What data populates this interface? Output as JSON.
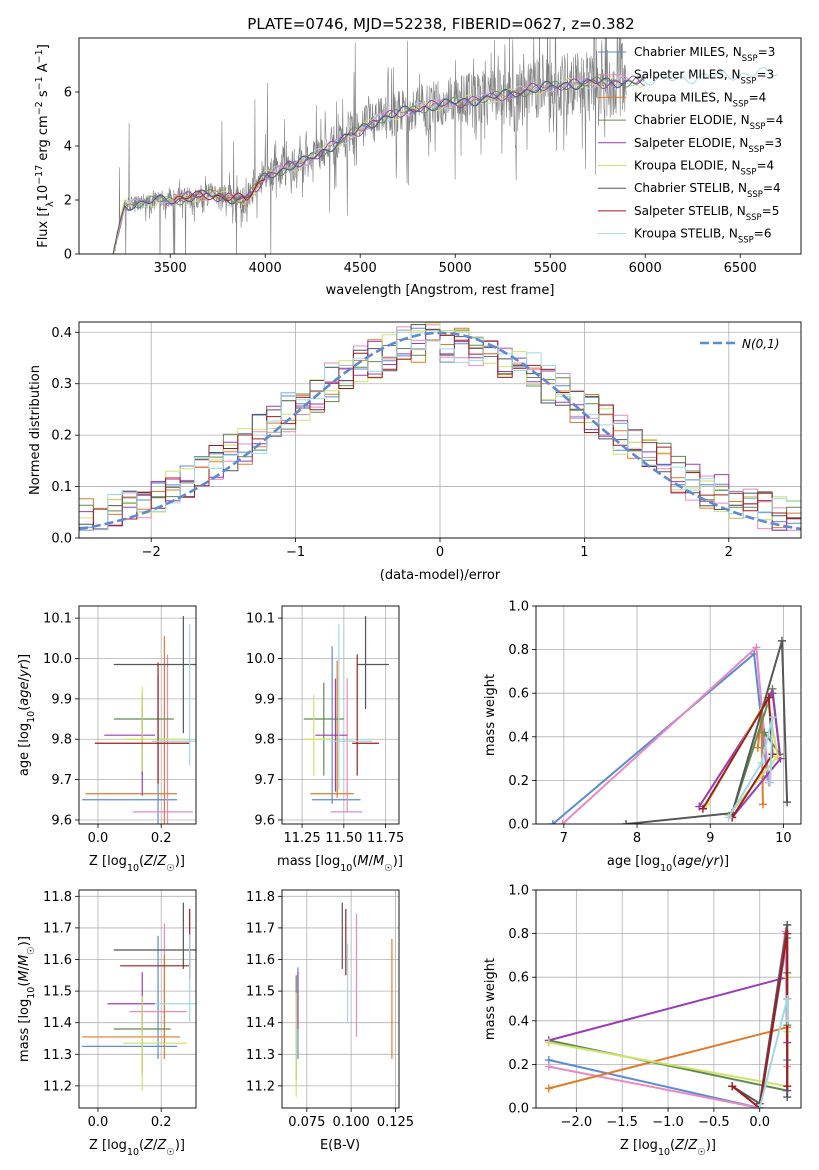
{
  "figure": {
    "title": "PLATE=0746, MJD=52238, FIBERID=0627, z=0.382"
  },
  "colors": [
    "#5b8ad6",
    "#e889c0",
    "#e07b2a",
    "#5f8a4f",
    "#9b3bb5",
    "#cfe26a",
    "#555555",
    "#a11c1c",
    "#9fd9e6"
  ],
  "spectrum_gray": "#7f7f7f",
  "legend_sub": "SSP",
  "chart_data": [
    {
      "id": "spectrum",
      "type": "line",
      "xlabel": "wavelength [Angstrom, rest frame]",
      "ylabel": "Flux [f_λ 10^-17 erg cm^-2 s^-1 A^-1]",
      "xlim": [
        3020,
        6820
      ],
      "ylim": [
        0,
        8.0
      ],
      "xticks": [
        3500,
        4000,
        4500,
        5000,
        5500,
        6000,
        6500
      ],
      "yticks": [
        0,
        2,
        4,
        6
      ],
      "grid": false,
      "legend": "top-right",
      "continuum": {
        "x": [
          3200,
          3260,
          3400,
          3520,
          3600,
          3700,
          3900,
          4000,
          4200,
          4400,
          4600,
          4800,
          5000,
          5200,
          5400,
          5600,
          5800,
          6000,
          6200,
          6400,
          6600,
          6750
        ],
        "y": [
          0.0,
          1.8,
          1.95,
          2.0,
          2.1,
          2.2,
          2.0,
          2.9,
          3.4,
          4.2,
          5.0,
          5.4,
          5.6,
          5.8,
          6.1,
          6.3,
          6.35,
          6.4,
          6.5,
          6.6,
          6.7,
          6.7
        ]
      },
      "series": [
        {
          "name": "Chabrier MILES",
          "nssp": "3"
        },
        {
          "name": "Salpeter MILES",
          "nssp": "3"
        },
        {
          "name": "Kroupa MILES",
          "nssp": "4"
        },
        {
          "name": "Chabrier ELODIE",
          "nssp": "4"
        },
        {
          "name": "Salpeter ELODIE",
          "nssp": "3"
        },
        {
          "name": "Kroupa ELODIE",
          "nssp": "4"
        },
        {
          "name": "Chabrier STELIB",
          "nssp": "4"
        },
        {
          "name": "Salpeter STELIB",
          "nssp": "5"
        },
        {
          "name": "Kroupa STELIB",
          "nssp": "6"
        }
      ]
    },
    {
      "id": "residuals",
      "type": "histogram",
      "xlabel": "(data-model)/error",
      "ylabel": "Normed distribution",
      "xlim": [
        -2.5,
        2.5
      ],
      "ylim": [
        0,
        0.42
      ],
      "xticks": [
        -2,
        -1,
        0,
        1,
        2
      ],
      "yticks": [
        0.0,
        0.1,
        0.2,
        0.3,
        0.4
      ],
      "grid": true,
      "legend": "top-right",
      "reference_label": "N(0,1)",
      "bins": 50
    },
    {
      "id": "age-vs-Z",
      "type": "errorbar",
      "xlabel": "Z [log10(Z/Z☉)]",
      "ylabel": "age [log10(age/yr)]",
      "xlim": [
        -0.06,
        0.31
      ],
      "ylim": [
        9.59,
        10.13
      ],
      "xticks": [
        0.0,
        0.2
      ],
      "yticks": [
        9.6,
        9.7,
        9.8,
        9.9,
        10.0,
        10.1
      ],
      "grid": true,
      "points": [
        {
          "x": 0.19,
          "xerr": [
            0.24,
            0.06
          ],
          "y": 9.65,
          "yerr": [
            0.37,
            0.31
          ]
        },
        {
          "x": 0.22,
          "xerr": [
            0.11,
            0.08
          ],
          "y": 9.62,
          "yerr": [
            0.13,
            0.39
          ]
        },
        {
          "x": 0.21,
          "xerr": [
            0.25,
            0.04
          ],
          "y": 9.665,
          "yerr": [
            0.12,
            0.39
          ]
        },
        {
          "x": 0.14,
          "xerr": [
            0.09,
            0.1
          ],
          "y": 9.85,
          "yerr": [
            0.14,
            0.06
          ]
        },
        {
          "x": 0.14,
          "xerr": [
            0.12,
            0.04
          ],
          "y": 9.81,
          "yerr": [
            0.15,
            0.07
          ]
        },
        {
          "x": 0.14,
          "xerr": [
            0.06,
            0.14
          ],
          "y": 9.8,
          "yerr": [
            0.08,
            0.13
          ]
        },
        {
          "x": 0.27,
          "xerr": [
            0.22,
            0.04
          ],
          "y": 9.985,
          "yerr": [
            0.17,
            0.12
          ]
        },
        {
          "x": 0.19,
          "xerr": [
            0.2,
            0.1
          ],
          "y": 9.79,
          "yerr": [
            0.1,
            0.2
          ]
        },
        {
          "x": 0.29,
          "xerr": [
            0.12,
            0.02
          ],
          "y": 9.795,
          "yerr": [
            0.06,
            0.29
          ]
        }
      ]
    },
    {
      "id": "age-vs-mass",
      "type": "errorbar",
      "xlabel": "mass [log10(M/M☉)]",
      "ylabel": "",
      "xlim": [
        11.13,
        11.83
      ],
      "ylim": [
        9.59,
        10.13
      ],
      "xticks": [
        11.25,
        11.5,
        11.75
      ],
      "yticks": [
        9.6,
        9.7,
        9.8,
        9.9,
        10.0,
        10.1
      ],
      "grid": true,
      "points": [
        {
          "x": 11.43,
          "xerr": [
            0.12,
            0.17
          ],
          "y": 9.65,
          "yerr": [
            0.01,
            0.38
          ]
        },
        {
          "x": 11.52,
          "xerr": [
            0.1,
            0.09
          ],
          "y": 9.62,
          "yerr": [
            0.0,
            0.33
          ]
        },
        {
          "x": 11.46,
          "xerr": [
            0.16,
            0.1
          ],
          "y": 9.665,
          "yerr": [
            0.01,
            0.33
          ]
        },
        {
          "x": 11.38,
          "xerr": [
            0.12,
            0.12
          ],
          "y": 9.85,
          "yerr": [
            0.14,
            0.09
          ]
        },
        {
          "x": 11.45,
          "xerr": [
            0.12,
            0.07
          ],
          "y": 9.81,
          "yerr": [
            0.14,
            0.14
          ]
        },
        {
          "x": 11.32,
          "xerr": [
            0.06,
            0.11
          ],
          "y": 9.8,
          "yerr": [
            0.09,
            0.11
          ]
        },
        {
          "x": 11.63,
          "xerr": [
            0.05,
            0.14
          ],
          "y": 9.985,
          "yerr": [
            0.11,
            0.12
          ]
        },
        {
          "x": 11.58,
          "xerr": [
            0.03,
            0.13
          ],
          "y": 9.79,
          "yerr": [
            0.08,
            0.22
          ]
        },
        {
          "x": 11.47,
          "xerr": [
            0.05,
            0.2
          ],
          "y": 9.795,
          "yerr": [
            0.12,
            0.29
          ]
        }
      ]
    },
    {
      "id": "weight-vs-age",
      "type": "line",
      "xlabel": "age [log10(age/yr)]",
      "ylabel": "mass weight",
      "xlim": [
        6.62,
        10.24
      ],
      "ylim": [
        0,
        1.0
      ],
      "xticks": [
        7,
        8,
        9,
        10
      ],
      "yticks": [
        0.0,
        0.2,
        0.4,
        0.6,
        0.8,
        1.0
      ],
      "grid": true,
      "series": [
        {
          "x": [
            6.85,
            9.6,
            9.78
          ],
          "y": [
            0.0,
            0.78,
            0.22
          ]
        },
        {
          "x": [
            6.98,
            9.63,
            9.8
          ],
          "y": [
            0.0,
            0.81,
            0.19
          ]
        },
        {
          "x": [
            9.65,
            9.7,
            9.72
          ],
          "y": [
            0.35,
            0.5,
            0.09
          ]
        },
        {
          "x": [
            9.3,
            9.85,
            9.95,
            9.74
          ],
          "y": [
            0.05,
            0.62,
            0.32,
            0.42
          ]
        },
        {
          "x": [
            8.85,
            9.85,
            9.96,
            9.3
          ],
          "y": [
            0.08,
            0.6,
            0.3,
            0.03
          ]
        },
        {
          "x": [
            8.95,
            9.78,
            9.92,
            9.25
          ],
          "y": [
            0.09,
            0.58,
            0.31,
            0.04
          ]
        },
        {
          "x": [
            7.85,
            9.3,
            9.98,
            10.05
          ],
          "y": [
            0.0,
            0.05,
            0.84,
            0.1
          ]
        },
        {
          "x": [
            8.9,
            9.8,
            9.85,
            9.3
          ],
          "y": [
            0.07,
            0.58,
            0.32,
            0.03
          ]
        },
        {
          "x": [
            9.25,
            9.7,
            9.85,
            9.82
          ],
          "y": [
            0.03,
            0.28,
            0.49,
            0.19
          ]
        }
      ]
    },
    {
      "id": "mass-vs-Z",
      "type": "errorbar",
      "xlabel": "Z [log10(Z/Z☉)]",
      "ylabel": "mass [log10(M/M☉)]",
      "xlim": [
        -0.06,
        0.31
      ],
      "ylim": [
        11.13,
        11.82
      ],
      "xticks": [
        0.0,
        0.2
      ],
      "yticks": [
        11.2,
        11.3,
        11.4,
        11.5,
        11.6,
        11.7,
        11.8
      ],
      "grid": true,
      "points": [
        {
          "x": 0.19,
          "xerr": [
            0.24,
            0.06
          ],
          "y": 11.325,
          "yerr": [
            0.04,
            0.35
          ]
        },
        {
          "x": 0.21,
          "xerr": [
            0.11,
            0.07
          ],
          "y": 11.435,
          "yerr": [
            0.08,
            0.28
          ]
        },
        {
          "x": 0.21,
          "xerr": [
            0.26,
            0.05
          ],
          "y": 11.355,
          "yerr": [
            0.07,
            0.26
          ]
        },
        {
          "x": 0.14,
          "xerr": [
            0.09,
            0.09
          ],
          "y": 11.38,
          "yerr": [
            0.14,
            0.1
          ]
        },
        {
          "x": 0.14,
          "xerr": [
            0.11,
            0.04
          ],
          "y": 11.46,
          "yerr": [
            0.09,
            0.1
          ]
        },
        {
          "x": 0.14,
          "xerr": [
            0.06,
            0.14
          ],
          "y": 11.335,
          "yerr": [
            0.15,
            0.15
          ]
        },
        {
          "x": 0.27,
          "xerr": [
            0.22,
            0.04
          ],
          "y": 11.63,
          "yerr": [
            0.06,
            0.15
          ]
        },
        {
          "x": 0.29,
          "xerr": [
            0.22,
            0.0
          ],
          "y": 11.58,
          "yerr": [
            0.04,
            0.18
          ]
        },
        {
          "x": 0.29,
          "xerr": [
            0.11,
            0.02
          ],
          "y": 11.46,
          "yerr": [
            0.06,
            0.22
          ]
        }
      ]
    },
    {
      "id": "mass-vs-ebv",
      "type": "errorbar",
      "xlabel": "E(B-V)",
      "ylabel": "",
      "xlim": [
        0.061,
        0.127
      ],
      "ylim": [
        11.13,
        11.82
      ],
      "xticks": [
        0.075,
        0.1,
        0.125
      ],
      "yticks": [
        11.2,
        11.3,
        11.4,
        11.5,
        11.6,
        11.7,
        11.8
      ],
      "grid": true,
      "points": [
        {
          "x": 0.07,
          "y": 11.325,
          "yerr": [
            0.04,
            0.25
          ]
        },
        {
          "x": 0.103,
          "y": 11.435,
          "yerr": [
            0.08,
            0.31
          ]
        },
        {
          "x": 0.123,
          "y": 11.355,
          "yerr": [
            0.07,
            0.31
          ]
        },
        {
          "x": 0.069,
          "y": 11.38,
          "yerr": [
            0.16,
            0.17
          ]
        },
        {
          "x": 0.07,
          "y": 11.46,
          "yerr": [
            0.08,
            0.1
          ]
        },
        {
          "x": 0.069,
          "y": 11.335,
          "yerr": [
            0.17,
            0.16
          ]
        },
        {
          "x": 0.095,
          "y": 11.63,
          "yerr": [
            0.06,
            0.15
          ]
        },
        {
          "x": 0.097,
          "y": 11.58,
          "yerr": [
            0.03,
            0.18
          ]
        },
        {
          "x": 0.098,
          "y": 11.46,
          "yerr": [
            0.06,
            0.19
          ]
        }
      ]
    },
    {
      "id": "weight-vs-Z",
      "type": "line",
      "xlabel": "Z [log10(Z/Z☉)]",
      "ylabel": "mass weight",
      "xlim": [
        -2.44,
        0.45
      ],
      "ylim": [
        0,
        1.0
      ],
      "xticks": [
        -2.0,
        -1.5,
        -1.0,
        -0.5,
        0.0
      ],
      "yticks": [
        0.0,
        0.2,
        0.4,
        0.6,
        0.8,
        1.0
      ],
      "grid": true,
      "series": [
        {
          "x": [
            -2.3,
            0.0,
            0.3,
            0.3
          ],
          "y": [
            0.22,
            0.0,
            0.78,
            0.22
          ]
        },
        {
          "x": [
            -2.3,
            0.0,
            0.28,
            0.3
          ],
          "y": [
            0.19,
            0.0,
            0.81,
            0.19
          ]
        },
        {
          "x": [
            -2.3,
            0.3,
            0.3
          ],
          "y": [
            0.09,
            0.37,
            0.5
          ]
        },
        {
          "x": [
            -2.3,
            0.3,
            0.3,
            0.3
          ],
          "y": [
            0.31,
            0.08,
            0.62,
            0.38
          ]
        },
        {
          "x": [
            -2.3,
            0.3,
            0.3,
            0.3
          ],
          "y": [
            0.31,
            0.6,
            0.08,
            0.3
          ]
        },
        {
          "x": [
            -2.3,
            0.3,
            0.3,
            0.3
          ],
          "y": [
            0.3,
            0.1,
            0.6,
            0.35
          ]
        },
        {
          "x": [
            -0.3,
            0.0,
            0.3,
            0.3
          ],
          "y": [
            0.1,
            0.02,
            0.84,
            0.05
          ]
        },
        {
          "x": [
            -0.3,
            0.0,
            0.3,
            0.3
          ],
          "y": [
            0.1,
            0.0,
            0.8,
            0.1
          ]
        },
        {
          "x": [
            0.0,
            0.3,
            0.3
          ],
          "y": [
            0.0,
            0.5,
            0.4
          ]
        }
      ]
    }
  ]
}
